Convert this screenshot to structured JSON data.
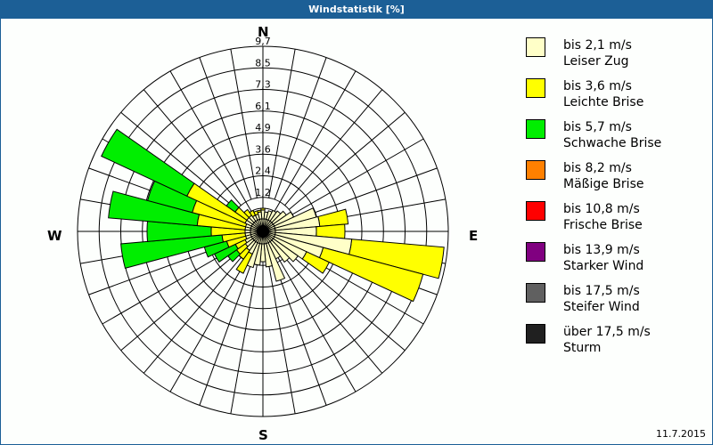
{
  "title": "Windstatistik [%]",
  "date": "11.7.2015",
  "compass": {
    "n": "N",
    "e": "E",
    "s": "S",
    "w": "W"
  },
  "chart_data": {
    "type": "polar-stacked-bar (wind rose)",
    "title": "Windstatistik [%]",
    "radial_ticks": [
      "1,2",
      "2,4",
      "3,6",
      "4,9",
      "6,1",
      "7,3",
      "8,5",
      "9,7"
    ],
    "radial_max": 9.7,
    "sector_width_deg": 10,
    "legend_position": "right",
    "series": [
      {
        "name": "bis 2,1 m/s Leiser Zug",
        "color": "#ffffc8"
      },
      {
        "name": "bis 3,6 m/s Leichte Brise",
        "color": "#ffff00"
      },
      {
        "name": "bis 5,7 m/s Schwache Brise",
        "color": "#00ee00"
      },
      {
        "name": "bis 8,2 m/s Mäßige Brise",
        "color": "#ff8000"
      },
      {
        "name": "bis 10,8 m/s Frische Brise",
        "color": "#ff0000"
      },
      {
        "name": "bis 13,9 m/s Starker Wind",
        "color": "#800080"
      },
      {
        "name": "bis 17,5 m/s Steifer Wind",
        "color": "#606060"
      },
      {
        "name": "über 17,5 m/s Sturm",
        "color": "#202020"
      }
    ],
    "sectors": [
      {
        "dir": 0,
        "cum": [
          0.5,
          0.6,
          0.6
        ]
      },
      {
        "dir": 10,
        "cum": [
          0.4,
          0.4,
          0.4
        ]
      },
      {
        "dir": 20,
        "cum": [
          0.5,
          0.5,
          0.5
        ]
      },
      {
        "dir": 30,
        "cum": [
          0.6,
          0.6,
          0.6
        ]
      },
      {
        "dir": 40,
        "cum": [
          0.7,
          0.7,
          0.7
        ]
      },
      {
        "dir": 50,
        "cum": [
          0.9,
          0.9,
          0.9
        ]
      },
      {
        "dir": 60,
        "cum": [
          1.2,
          1.2,
          1.2
        ]
      },
      {
        "dir": 70,
        "cum": [
          2.4,
          2.4,
          2.4
        ]
      },
      {
        "dir": 80,
        "cum": [
          2.5,
          4.1,
          4.1
        ]
      },
      {
        "dir": 90,
        "cum": [
          2.3,
          3.9,
          3.9
        ]
      },
      {
        "dir": 100,
        "cum": [
          4.3,
          9.5,
          9.5
        ]
      },
      {
        "dir": 110,
        "cum": [
          2.8,
          8.6,
          8.6
        ]
      },
      {
        "dir": 120,
        "cum": [
          2.0,
          3.4,
          3.4
        ]
      },
      {
        "dir": 130,
        "cum": [
          1.7,
          1.7,
          1.7
        ]
      },
      {
        "dir": 140,
        "cum": [
          1.4,
          1.4,
          1.4
        ]
      },
      {
        "dir": 150,
        "cum": [
          1.0,
          1.0,
          1.0
        ]
      },
      {
        "dir": 160,
        "cum": [
          2.2,
          2.2,
          2.2
        ]
      },
      {
        "dir": 170,
        "cum": [
          1.3,
          1.3,
          1.3
        ]
      },
      {
        "dir": 180,
        "cum": [
          1.0,
          1.0,
          1.0
        ]
      },
      {
        "dir": 190,
        "cum": [
          1.2,
          1.2,
          1.2
        ]
      },
      {
        "dir": 200,
        "cum": [
          1.4,
          1.4,
          1.4
        ]
      },
      {
        "dir": 210,
        "cum": [
          0.7,
          1.9,
          1.9
        ]
      },
      {
        "dir": 220,
        "cum": [
          0.6,
          1.2,
          1.2
        ]
      },
      {
        "dir": 230,
        "cum": [
          0.5,
          1.1,
          1.7
        ]
      },
      {
        "dir": 240,
        "cum": [
          0.4,
          1.0,
          2.3
        ]
      },
      {
        "dir": 250,
        "cum": [
          0.3,
          1.4,
          2.7
        ]
      },
      {
        "dir": 260,
        "cum": [
          0.3,
          1.6,
          7.3
        ]
      },
      {
        "dir": 270,
        "cum": [
          0.3,
          2.2,
          5.8
        ]
      },
      {
        "dir": 280,
        "cum": [
          0.3,
          3.0,
          8.0
        ]
      },
      {
        "dir": 290,
        "cum": [
          0.3,
          3.4,
          6.0
        ]
      },
      {
        "dir": 300,
        "cum": [
          0.4,
          4.0,
          9.3
        ]
      },
      {
        "dir": 310,
        "cum": [
          0.4,
          1.2,
          1.8
        ]
      },
      {
        "dir": 320,
        "cum": [
          0.4,
          0.8,
          0.8
        ]
      },
      {
        "dir": 330,
        "cum": [
          0.3,
          0.6,
          0.6
        ]
      },
      {
        "dir": 340,
        "cum": [
          0.3,
          0.5,
          0.5
        ]
      },
      {
        "dir": 350,
        "cum": [
          0.4,
          0.5,
          0.5
        ]
      }
    ]
  },
  "legend": [
    {
      "line1": "bis 2,1 m/s",
      "line2": "Leiser Zug",
      "color": "#ffffc8"
    },
    {
      "line1": "bis 3,6 m/s",
      "line2": "Leichte Brise",
      "color": "#ffff00"
    },
    {
      "line1": "bis 5,7 m/s",
      "line2": "Schwache Brise",
      "color": "#00ee00"
    },
    {
      "line1": "bis 8,2 m/s",
      "line2": "Mäßige Brise",
      "color": "#ff8000"
    },
    {
      "line1": "bis 10,8 m/s",
      "line2": "Frische Brise",
      "color": "#ff0000"
    },
    {
      "line1": "bis 13,9 m/s",
      "line2": "Starker Wind",
      "color": "#800080"
    },
    {
      "line1": "bis 17,5 m/s",
      "line2": "Steifer Wind",
      "color": "#606060"
    },
    {
      "line1": "über 17,5 m/s",
      "line2": "Sturm",
      "color": "#202020"
    }
  ]
}
